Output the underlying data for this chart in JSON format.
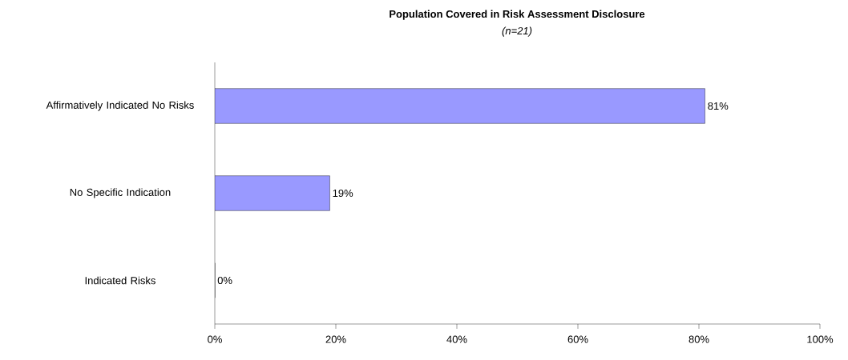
{
  "chart_data": {
    "type": "bar",
    "orientation": "horizontal",
    "title": "Population Covered in Risk Assessment Disclosure",
    "subtitle": "*(n=21)*",
    "categories": [
      "Affirmatively Indicated No Risks",
      "No Specific Indication",
      "Indicated Risks"
    ],
    "values": [
      81,
      19,
      0
    ],
    "value_labels": [
      "81%",
      "19%",
      "0%"
    ],
    "color": "#9999ff",
    "xlim": [
      0,
      100
    ],
    "xticks": [
      {
        "value": 0,
        "label": "0%"
      },
      {
        "value": 20,
        "label": "20%"
      },
      {
        "value": 40,
        "label": "40%"
      },
      {
        "value": 60,
        "label": "60%"
      },
      {
        "value": 80,
        "label": "80%"
      },
      {
        "value": 100,
        "label": "100%"
      }
    ],
    "grid": false
  }
}
